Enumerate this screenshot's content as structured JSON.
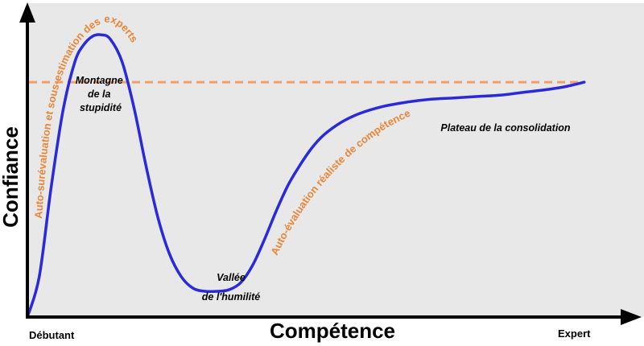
{
  "chart_data": {
    "type": "line",
    "title": "",
    "xlabel": "Compétence",
    "ylabel": "Confiance",
    "x_start_label": "Débutant",
    "x_end_label": "Expert",
    "xlim": [
      0,
      100
    ],
    "ylim": [
      0,
      100
    ],
    "grid": false,
    "series": [
      {
        "color": "#2a2ad6",
        "x": [
          0,
          2,
          4,
          6,
          8,
          9.5,
          11,
          12.5,
          14,
          16,
          18,
          20,
          22,
          24,
          26,
          28,
          30,
          32,
          34,
          36,
          38,
          40,
          42,
          44,
          46,
          48,
          50,
          53,
          56,
          60,
          64,
          68,
          72,
          76,
          80,
          84,
          88,
          91,
          94
        ],
        "y": [
          0,
          14,
          45,
          72,
          89,
          95,
          98,
          98.5,
          97,
          89,
          73,
          53,
          35,
          22,
          14,
          10,
          9,
          9,
          9.5,
          12,
          18,
          27,
          37,
          46,
          53,
          59,
          63.5,
          68,
          71,
          73.5,
          75,
          76,
          76.5,
          77,
          77.5,
          78.5,
          79.5,
          80.5,
          82
        ]
      }
    ],
    "reference_line": {
      "y": 82,
      "color": "#f0a06a",
      "style": "dashed"
    },
    "annotations": {
      "peak": "Montagne de la stupidité",
      "valley_line1": "Vallée",
      "valley_line2": "de l'humilité",
      "plateau": "Plateau de la consolidation",
      "rise_label": "Auto-surévaluation et sous-estimation des experts",
      "slope_label": "Auto-évaluation réaliste de compétence"
    },
    "colors": {
      "background": "#e8e8e8",
      "curve": "#2a2ad6",
      "reference": "#f0a06a",
      "annotation_orange": "#e8873a"
    }
  }
}
